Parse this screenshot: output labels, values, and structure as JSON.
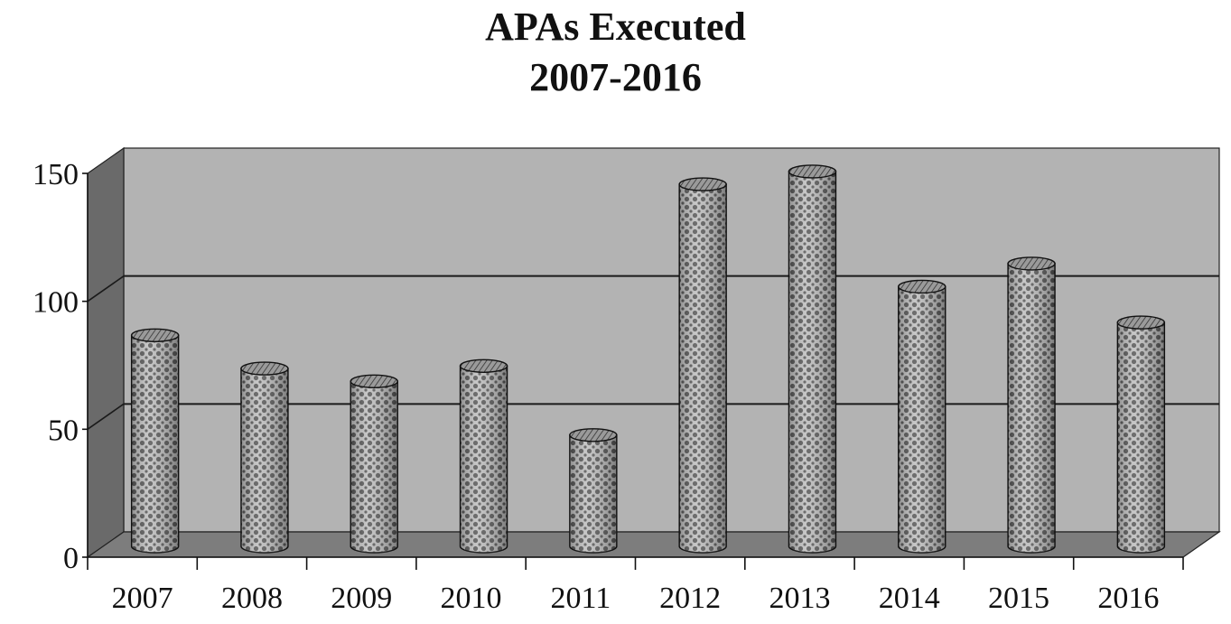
{
  "chart_data": {
    "type": "bar",
    "title_lines": [
      "APAs Executed",
      "2007-2016"
    ],
    "categories": [
      "2007",
      "2008",
      "2009",
      "2010",
      "2011",
      "2012",
      "2013",
      "2014",
      "2015",
      "2016"
    ],
    "values": [
      82,
      69,
      64,
      70,
      43,
      141,
      146,
      101,
      110,
      87
    ],
    "ylim": [
      0,
      150
    ],
    "y_ticks": [
      "0",
      "50",
      "100",
      "150"
    ],
    "xlabel": "",
    "ylabel": "",
    "grid": true,
    "style": "3d-cylinders",
    "colors": {
      "back_wall": "#b3b3b3",
      "side_wall": "#6a6a6a",
      "floor": "#7d7d7d",
      "gridline": "#1a1a1a",
      "bar_fill": "#bdbdbd",
      "bar_dot": "#555555"
    }
  }
}
